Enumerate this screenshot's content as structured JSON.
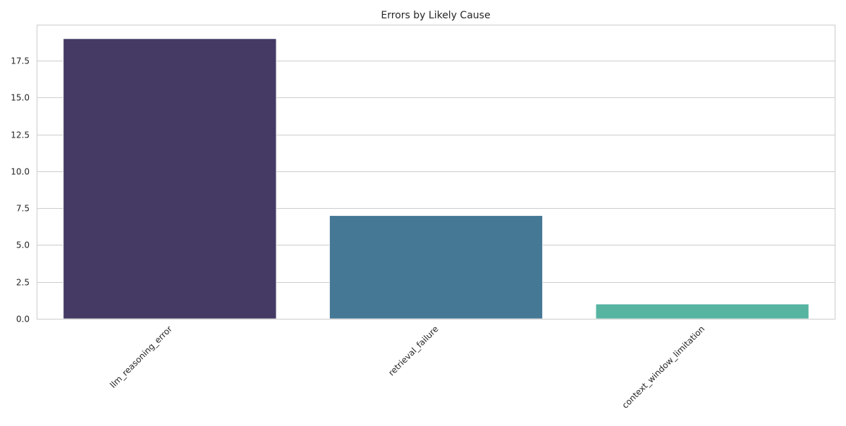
{
  "chart_data": {
    "type": "bar",
    "title": "Errors by Likely Cause",
    "xlabel": "",
    "ylabel": "",
    "categories": [
      "llm_reasoning_error",
      "retrieval_failure",
      "context_window_limitation"
    ],
    "values": [
      19,
      7,
      1
    ],
    "colors": [
      "#443a64",
      "#457895",
      "#56b4a1"
    ],
    "ylim": [
      0,
      19.95
    ],
    "yticks": [
      0.0,
      2.5,
      5.0,
      7.5,
      10.0,
      12.5,
      15.0,
      17.5
    ],
    "ytick_labels": [
      "0.0",
      "2.5",
      "5.0",
      "7.5",
      "10.0",
      "12.5",
      "15.0",
      "17.5"
    ],
    "grid": "horizontal",
    "style": {
      "grid_color": "#cccccc",
      "frame_color": "#cccccc",
      "text_color": "#262626"
    }
  }
}
